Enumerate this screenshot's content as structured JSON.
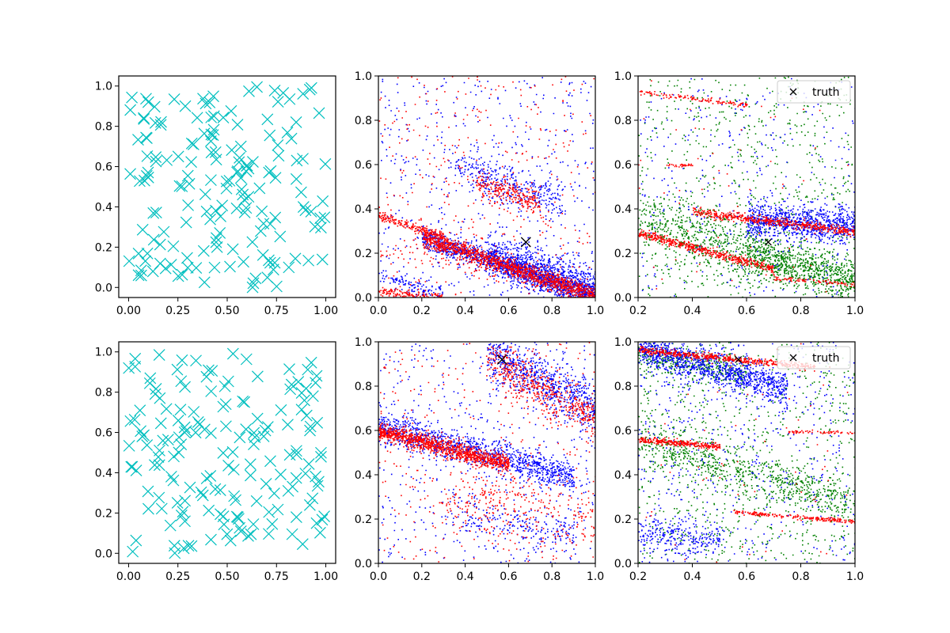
{
  "figure": {
    "width": 1200,
    "height": 800
  },
  "colors": {
    "cyan": "#00bfbf",
    "blue": "#0000ff",
    "red": "#ff0000",
    "green": "#008000",
    "black": "#000000"
  },
  "chart_data": [
    {
      "id": "r0c0",
      "type": "scatter",
      "row": 0,
      "col": 0,
      "xlim": [
        -0.05,
        1.05
      ],
      "ylim": [
        -0.05,
        1.05
      ],
      "xticks": [
        0.0,
        0.25,
        0.5,
        0.75,
        1.0
      ],
      "xtick_labels": [
        "0.00",
        "0.25",
        "0.50",
        "0.75",
        "1.00"
      ],
      "yticks": [
        0.0,
        0.2,
        0.4,
        0.6,
        0.8,
        1.0
      ],
      "ytick_labels": [
        "0.0",
        "0.2",
        "0.4",
        "0.6",
        "0.8",
        "1.0"
      ],
      "series": [
        {
          "marker": "x",
          "color": "cyan",
          "size": 8,
          "count": 170,
          "distribution": "uniform",
          "seed": 11
        }
      ]
    },
    {
      "id": "r0c1",
      "type": "scatter",
      "row": 0,
      "col": 1,
      "xlim": [
        0.0,
        1.0
      ],
      "ylim": [
        0.0,
        1.0
      ],
      "xticks": [
        0.0,
        0.2,
        0.4,
        0.6,
        0.8,
        1.0
      ],
      "xtick_labels": [
        "0.0",
        "0.2",
        "0.4",
        "0.6",
        "0.8",
        "1.0"
      ],
      "yticks": [
        0.0,
        0.2,
        0.4,
        0.6,
        0.8,
        1.0
      ],
      "ytick_labels": [
        "0.0",
        "0.2",
        "0.4",
        "0.6",
        "0.8",
        "1.0"
      ],
      "series": [
        {
          "marker": "dot",
          "color": "blue",
          "seed": 21,
          "bands": [
            {
              "x": [
                0.2,
                1.0
              ],
              "y0": 0.34,
              "slope": -0.33,
              "spread": 0.025,
              "count": 1200
            },
            {
              "x": [
                0.5,
                1.0
              ],
              "y0": 0.36,
              "slope": -0.32,
              "spread": 0.05,
              "count": 900
            },
            {
              "x": [
                0.35,
                0.85
              ],
              "y0": 0.72,
              "slope": -0.35,
              "spread": 0.05,
              "count": 350
            },
            {
              "x": [
                0.0,
                0.3
              ],
              "y0": 0.1,
              "slope": -0.3,
              "spread": 0.02,
              "count": 120
            }
          ],
          "background": 500
        },
        {
          "marker": "dot",
          "color": "red",
          "seed": 22,
          "bands": [
            {
              "x": [
                0.2,
                1.0
              ],
              "y0": 0.34,
              "slope": -0.33,
              "spread": 0.02,
              "count": 1300
            },
            {
              "x": [
                0.0,
                0.3
              ],
              "y0": 0.37,
              "slope": -0.3,
              "spread": 0.01,
              "count": 200
            },
            {
              "x": [
                0.45,
                0.75
              ],
              "y0": 0.65,
              "slope": -0.3,
              "spread": 0.03,
              "count": 250
            },
            {
              "x": [
                0.0,
                0.3
              ],
              "y0": 0.03,
              "slope": -0.1,
              "spread": 0.01,
              "count": 150
            },
            {
              "x": [
                0.0,
                1.0
              ],
              "y0": 0.22,
              "slope": -0.22,
              "spread": 0.02,
              "count": 80
            }
          ],
          "background": 350
        }
      ],
      "truth": {
        "x": 0.68,
        "y": 0.25,
        "marker": "x",
        "color": "black",
        "size": 9
      }
    },
    {
      "id": "r0c2",
      "type": "scatter",
      "row": 0,
      "col": 2,
      "xlim": [
        0.2,
        1.0
      ],
      "ylim": [
        0.0,
        1.0
      ],
      "xticks": [
        0.2,
        0.4,
        0.6,
        0.8,
        1.0
      ],
      "xtick_labels": [
        "0.2",
        "0.4",
        "0.6",
        "0.8",
        "1.0"
      ],
      "yticks": [
        0.0,
        0.2,
        0.4,
        0.6,
        0.8,
        1.0
      ],
      "ytick_labels": [
        "0.0",
        "0.2",
        "0.4",
        "0.6",
        "0.8",
        "1.0"
      ],
      "series": [
        {
          "marker": "dot",
          "color": "green",
          "seed": 31,
          "bands": [
            {
              "x": [
                0.2,
                1.0
              ],
              "y0": 0.42,
              "slope": -0.35,
              "spread": 0.07,
              "count": 900
            },
            {
              "x": [
                0.6,
                1.0
              ],
              "y0": 0.38,
              "slope": -0.3,
              "spread": 0.04,
              "count": 500
            }
          ],
          "background": 700
        },
        {
          "marker": "dot",
          "color": "blue",
          "seed": 32,
          "bands": [
            {
              "x": [
                0.6,
                1.0
              ],
              "y0": 0.38,
              "slope": -0.05,
              "spread": 0.04,
              "count": 900
            }
          ],
          "background": 350
        },
        {
          "marker": "dot",
          "color": "red",
          "seed": 33,
          "bands": [
            {
              "x": [
                0.2,
                0.7
              ],
              "y0": 0.36,
              "slope": -0.33,
              "spread": 0.01,
              "count": 500
            },
            {
              "x": [
                0.4,
                1.0
              ],
              "y0": 0.45,
              "slope": -0.15,
              "spread": 0.01,
              "count": 500
            },
            {
              "x": [
                0.2,
                0.6
              ],
              "y0": 0.96,
              "slope": -0.15,
              "spread": 0.005,
              "count": 120
            },
            {
              "x": [
                0.7,
                1.0
              ],
              "y0": 0.16,
              "slope": -0.1,
              "spread": 0.005,
              "count": 80
            },
            {
              "x": [
                0.3,
                0.4
              ],
              "y0": 0.6,
              "slope": 0.0,
              "spread": 0.004,
              "count": 30
            }
          ],
          "background": 60
        }
      ],
      "truth": {
        "x": 0.68,
        "y": 0.25,
        "marker": "x",
        "color": "black",
        "size": 5
      },
      "legend": {
        "position": "top-right",
        "entries": [
          {
            "label": "truth",
            "marker": "x",
            "color": "black"
          }
        ]
      }
    },
    {
      "id": "r1c0",
      "type": "scatter",
      "row": 1,
      "col": 0,
      "xlim": [
        -0.05,
        1.05
      ],
      "ylim": [
        -0.05,
        1.05
      ],
      "xticks": [
        0.0,
        0.25,
        0.5,
        0.75,
        1.0
      ],
      "xtick_labels": [
        "0.00",
        "0.25",
        "0.50",
        "0.75",
        "1.00"
      ],
      "yticks": [
        0.0,
        0.2,
        0.4,
        0.6,
        0.8,
        1.0
      ],
      "ytick_labels": [
        "0.0",
        "0.2",
        "0.4",
        "0.6",
        "0.8",
        "1.0"
      ],
      "series": [
        {
          "marker": "x",
          "color": "cyan",
          "size": 8,
          "count": 170,
          "distribution": "uniform",
          "seed": 41
        }
      ]
    },
    {
      "id": "r1c1",
      "type": "scatter",
      "row": 1,
      "col": 1,
      "xlim": [
        0.0,
        1.0
      ],
      "ylim": [
        0.0,
        1.0
      ],
      "xticks": [
        0.0,
        0.2,
        0.4,
        0.6,
        0.8,
        1.0
      ],
      "xtick_labels": [
        "0.0",
        "0.2",
        "0.4",
        "0.6",
        "0.8",
        "1.0"
      ],
      "yticks": [
        0.0,
        0.2,
        0.4,
        0.6,
        0.8,
        1.0
      ],
      "ytick_labels": [
        "0.0",
        "0.2",
        "0.4",
        "0.6",
        "0.8",
        "1.0"
      ],
      "series": [
        {
          "marker": "dot",
          "color": "blue",
          "seed": 51,
          "bands": [
            {
              "x": [
                0.0,
                0.9
              ],
              "y0": 0.62,
              "slope": -0.25,
              "spread": 0.035,
              "count": 1100
            },
            {
              "x": [
                0.5,
                1.0
              ],
              "y0": 1.2,
              "slope": -0.5,
              "spread": 0.06,
              "count": 700
            },
            {
              "x": [
                0.3,
                0.9
              ],
              "y0": 0.3,
              "slope": -0.2,
              "spread": 0.05,
              "count": 200
            }
          ],
          "background": 500
        },
        {
          "marker": "dot",
          "color": "red",
          "seed": 52,
          "bands": [
            {
              "x": [
                0.0,
                0.6
              ],
              "y0": 0.6,
              "slope": -0.25,
              "spread": 0.02,
              "count": 1100
            },
            {
              "x": [
                0.5,
                1.0
              ],
              "y0": 1.2,
              "slope": -0.55,
              "spread": 0.05,
              "count": 500
            },
            {
              "x": [
                0.3,
                1.0
              ],
              "y0": 0.35,
              "slope": -0.15,
              "spread": 0.08,
              "count": 250
            }
          ],
          "background": 350
        }
      ],
      "truth": {
        "x": 0.57,
        "y": 0.92,
        "marker": "x",
        "color": "black",
        "size": 9
      }
    },
    {
      "id": "r1c2",
      "type": "scatter",
      "row": 1,
      "col": 2,
      "xlim": [
        0.2,
        1.0
      ],
      "ylim": [
        0.0,
        1.0
      ],
      "xticks": [
        0.2,
        0.4,
        0.6,
        0.8,
        1.0
      ],
      "xtick_labels": [
        "0.2",
        "0.4",
        "0.6",
        "0.8",
        "1.0"
      ],
      "yticks": [
        0.0,
        0.2,
        0.4,
        0.6,
        0.8,
        1.0
      ],
      "ytick_labels": [
        "0.0",
        "0.2",
        "0.4",
        "0.6",
        "0.8",
        "1.0"
      ],
      "series": [
        {
          "marker": "dot",
          "color": "green",
          "seed": 61,
          "bands": [
            {
              "x": [
                0.2,
                1.0
              ],
              "y0": 0.62,
              "slope": -0.35,
              "spread": 0.05,
              "count": 700
            },
            {
              "x": [
                0.2,
                0.6
              ],
              "y0": 0.98,
              "slope": -0.2,
              "spread": 0.03,
              "count": 300
            }
          ],
          "background": 800
        },
        {
          "marker": "dot",
          "color": "blue",
          "seed": 62,
          "bands": [
            {
              "x": [
                0.2,
                0.75
              ],
              "y0": 1.05,
              "slope": -0.35,
              "spread": 0.04,
              "count": 1100
            },
            {
              "x": [
                0.2,
                0.5
              ],
              "y0": 0.16,
              "slope": -0.1,
              "spread": 0.04,
              "count": 250
            }
          ],
          "background": 550
        },
        {
          "marker": "dot",
          "color": "red",
          "seed": 63,
          "bands": [
            {
              "x": [
                0.2,
                0.85
              ],
              "y0": 0.99,
              "slope": -0.12,
              "spread": 0.008,
              "count": 500
            },
            {
              "x": [
                0.2,
                0.5
              ],
              "y0": 0.58,
              "slope": -0.1,
              "spread": 0.007,
              "count": 300
            },
            {
              "x": [
                0.55,
                1.0
              ],
              "y0": 0.29,
              "slope": -0.1,
              "spread": 0.005,
              "count": 200
            },
            {
              "x": [
                0.75,
                1.0
              ],
              "y0": 0.62,
              "slope": -0.03,
              "spread": 0.004,
              "count": 60
            }
          ],
          "background": 60
        }
      ],
      "truth": {
        "x": 0.57,
        "y": 0.92,
        "marker": "x",
        "color": "black",
        "size": 5
      },
      "legend": {
        "position": "top-right",
        "entries": [
          {
            "label": "truth",
            "marker": "x",
            "color": "black"
          }
        ]
      }
    }
  ]
}
